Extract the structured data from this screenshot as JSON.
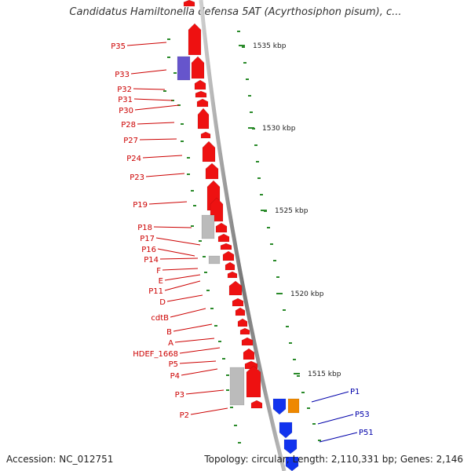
{
  "title": "Candidatus Hamiltonella defensa 5AT (Acyrthosiphon pisum), c...",
  "footer": {
    "accession": "Accession: NC_012751",
    "topology": "Topology: circular; Length: 2,110,331 bp; Genes: 2,146"
  },
  "colors": {
    "forward_gene": "#ee1111",
    "rna_gene": "#bbbbbb",
    "purple_gene": "#6655cc",
    "reverse_gene": "#1133ee",
    "orange_gene": "#ee8800",
    "label_left": "#cc0000",
    "label_right": "#0000aa",
    "tick": "#2a8a2a",
    "backbone": "#888888"
  },
  "scale_labels": [
    "1535 kbp",
    "1530 kbp",
    "1525 kbp",
    "1520 kbp",
    "1515 kbp"
  ],
  "left_labels": [
    "P35",
    "P33",
    "P32",
    "P31",
    "P30",
    "P28",
    "P27",
    "P24",
    "P23",
    "P19",
    "P18",
    "P17",
    "P16",
    "P14",
    "F",
    "E",
    "P11",
    "D",
    "cdtB",
    "B",
    "A",
    "HDEF_1668",
    "P5",
    "P4",
    "P3",
    "P2"
  ],
  "right_labels": [
    "P1",
    "P53",
    "P51"
  ]
}
